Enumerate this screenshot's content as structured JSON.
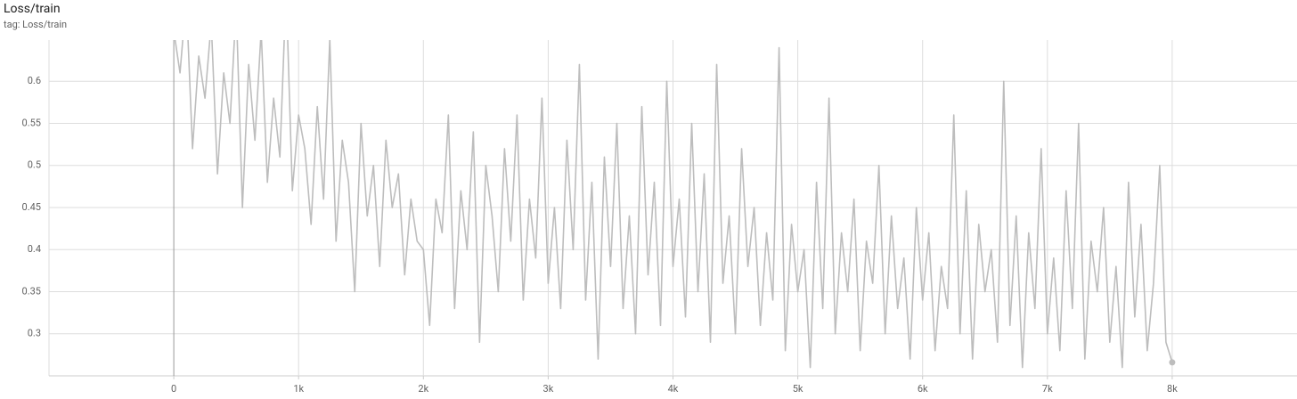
{
  "chart_data": {
    "type": "line",
    "title": "Loss/train",
    "subtitle": "tag: Loss/train",
    "xlim": [
      -1000,
      9000
    ],
    "ylim": [
      0.25,
      0.649
    ],
    "xticks": [
      0,
      {
        "value": 1000,
        "label": "1k"
      },
      {
        "value": 2000,
        "label": "2k"
      },
      {
        "value": 3000,
        "label": "3k"
      },
      {
        "value": 4000,
        "label": "4k"
      },
      {
        "value": 5000,
        "label": "5k"
      },
      {
        "value": 6000,
        "label": "6k"
      },
      {
        "value": 7000,
        "label": "7k"
      },
      {
        "value": 8000,
        "label": "8k"
      }
    ],
    "yticks": [
      0.3,
      0.35,
      0.4,
      0.45,
      0.5,
      0.55,
      0.6
    ],
    "grid": true,
    "x": [
      0,
      50,
      100,
      150,
      200,
      250,
      300,
      350,
      400,
      450,
      500,
      550,
      600,
      650,
      700,
      750,
      800,
      850,
      900,
      950,
      1000,
      1050,
      1100,
      1150,
      1200,
      1250,
      1300,
      1350,
      1400,
      1450,
      1500,
      1550,
      1600,
      1650,
      1700,
      1750,
      1800,
      1850,
      1900,
      1950,
      2000,
      2050,
      2100,
      2150,
      2200,
      2250,
      2300,
      2350,
      2400,
      2450,
      2500,
      2550,
      2600,
      2650,
      2700,
      2750,
      2800,
      2850,
      2900,
      2950,
      3000,
      3050,
      3100,
      3150,
      3200,
      3250,
      3300,
      3350,
      3400,
      3450,
      3500,
      3550,
      3600,
      3650,
      3700,
      3750,
      3800,
      3850,
      3900,
      3950,
      4000,
      4050,
      4100,
      4150,
      4200,
      4250,
      4300,
      4350,
      4400,
      4450,
      4500,
      4550,
      4600,
      4650,
      4700,
      4750,
      4800,
      4850,
      4900,
      4950,
      5000,
      5050,
      5100,
      5150,
      5200,
      5250,
      5300,
      5350,
      5400,
      5450,
      5500,
      5550,
      5600,
      5650,
      5700,
      5750,
      5800,
      5850,
      5900,
      5950,
      6000,
      6050,
      6100,
      6150,
      6200,
      6250,
      6300,
      6350,
      6400,
      6450,
      6500,
      6550,
      6600,
      6650,
      6700,
      6750,
      6800,
      6850,
      6900,
      6950,
      7000,
      7050,
      7100,
      7150,
      7200,
      7250,
      7300,
      7350,
      7400,
      7450,
      7500,
      7550,
      7600,
      7650,
      7700,
      7750,
      7800,
      7850,
      7900,
      7950,
      8000
    ],
    "series": [
      {
        "name": "Loss/train",
        "color": "#bdbdbd",
        "values": [
          0.66,
          0.61,
          0.7,
          0.52,
          0.63,
          0.58,
          0.67,
          0.49,
          0.61,
          0.55,
          0.69,
          0.45,
          0.62,
          0.53,
          0.66,
          0.48,
          0.58,
          0.51,
          0.71,
          0.47,
          0.56,
          0.52,
          0.43,
          0.57,
          0.46,
          0.65,
          0.41,
          0.53,
          0.48,
          0.35,
          0.55,
          0.44,
          0.5,
          0.38,
          0.53,
          0.45,
          0.49,
          0.37,
          0.46,
          0.41,
          0.4,
          0.31,
          0.46,
          0.42,
          0.56,
          0.33,
          0.47,
          0.4,
          0.54,
          0.29,
          0.5,
          0.44,
          0.35,
          0.52,
          0.41,
          0.56,
          0.34,
          0.46,
          0.39,
          0.58,
          0.36,
          0.45,
          0.33,
          0.53,
          0.4,
          0.62,
          0.34,
          0.48,
          0.27,
          0.51,
          0.38,
          0.55,
          0.33,
          0.44,
          0.3,
          0.57,
          0.37,
          0.48,
          0.31,
          0.6,
          0.38,
          0.46,
          0.32,
          0.55,
          0.35,
          0.49,
          0.29,
          0.62,
          0.36,
          0.44,
          0.3,
          0.52,
          0.38,
          0.45,
          0.31,
          0.42,
          0.34,
          0.64,
          0.28,
          0.43,
          0.35,
          0.4,
          0.26,
          0.48,
          0.33,
          0.58,
          0.3,
          0.42,
          0.35,
          0.46,
          0.28,
          0.41,
          0.36,
          0.5,
          0.3,
          0.44,
          0.33,
          0.39,
          0.27,
          0.45,
          0.34,
          0.42,
          0.28,
          0.38,
          0.33,
          0.56,
          0.3,
          0.47,
          0.27,
          0.43,
          0.35,
          0.4,
          0.29,
          0.6,
          0.31,
          0.44,
          0.26,
          0.42,
          0.33,
          0.52,
          0.3,
          0.39,
          0.28,
          0.47,
          0.33,
          0.55,
          0.27,
          0.41,
          0.35,
          0.45,
          0.29,
          0.38,
          0.26,
          0.48,
          0.32,
          0.43,
          0.28,
          0.36,
          0.5,
          0.29,
          0.266
        ]
      }
    ]
  }
}
